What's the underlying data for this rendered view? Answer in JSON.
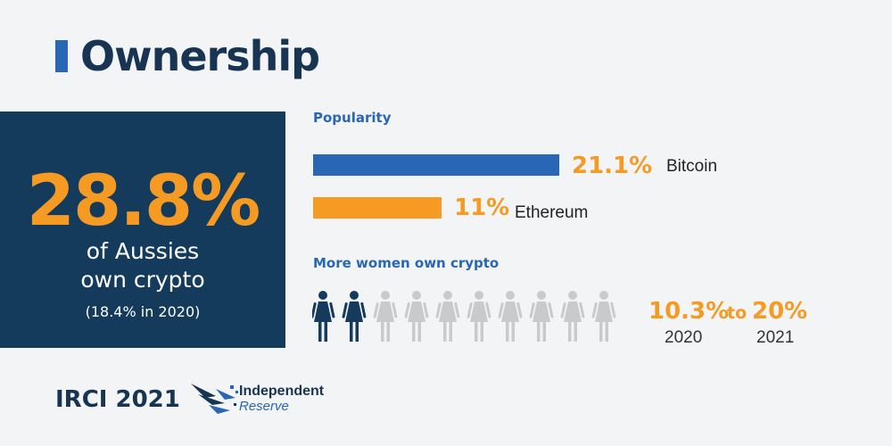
{
  "title": "Ownership",
  "hero": {
    "percent": "28.8%",
    "line1": "of Aussies",
    "line2": "own crypto",
    "note": "(18.4% in 2020)"
  },
  "chart_data": {
    "type": "bar",
    "title": "Popularity",
    "categories": [
      "Bitcoin",
      "Ethereum"
    ],
    "values": [
      21.1,
      11
    ],
    "value_labels": [
      "21.1%",
      "11%"
    ],
    "colors": [
      "#2966b3",
      "#f59a23"
    ]
  },
  "women": {
    "title": "More women own crypto",
    "icons_total": 10,
    "icons_highlighted": 2,
    "highlight_color": "#143a5c",
    "base_color": "#c9cacc",
    "from_value": "10.3%",
    "connector": "to",
    "to_value": "20%",
    "from_year": "2020",
    "to_year": "2021"
  },
  "footer": {
    "title": "IRCI 2021",
    "logo_line1": "Independent",
    "logo_line2": "Reserve"
  },
  "colors": {
    "accent_blue": "#2966b3",
    "accent_orange": "#f59a23",
    "navy": "#143a5c"
  }
}
